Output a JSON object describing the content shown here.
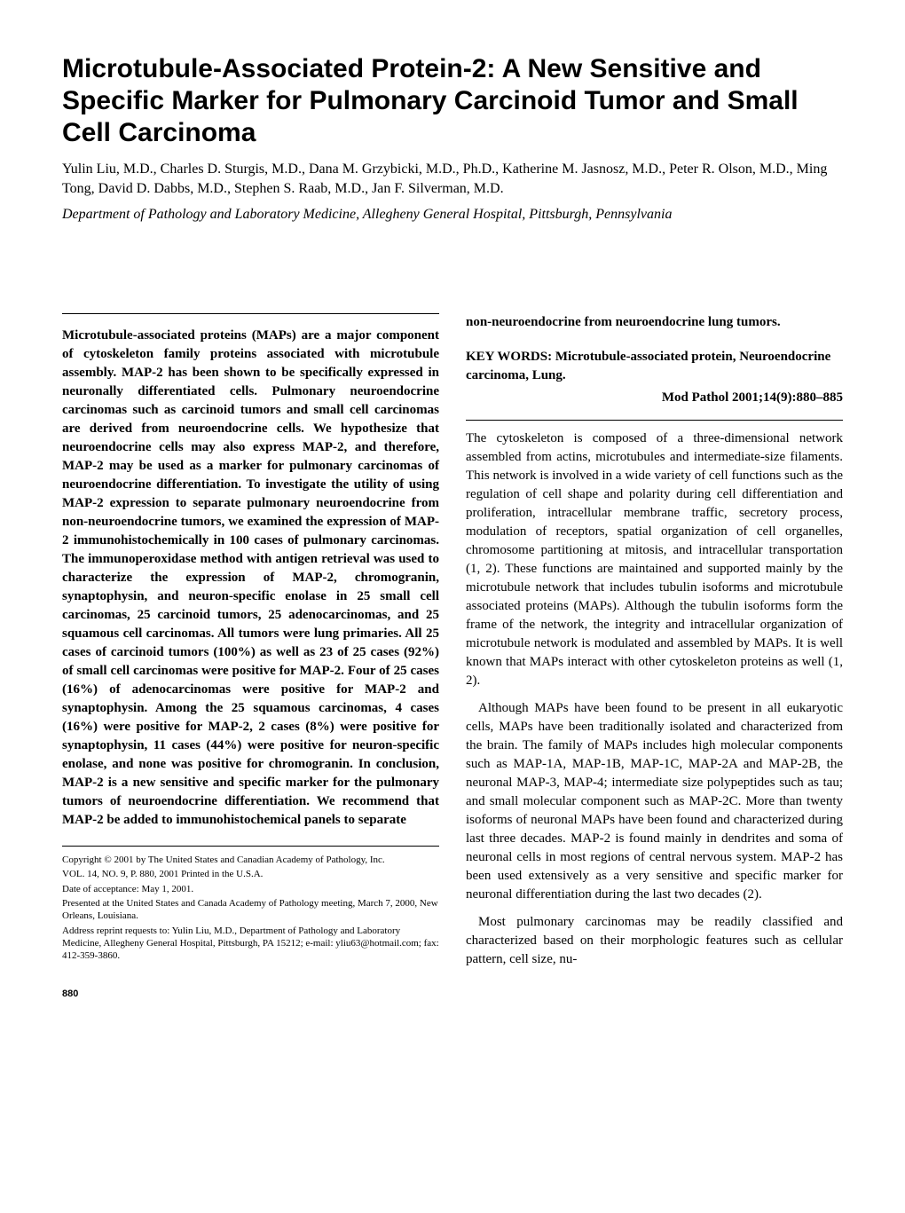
{
  "title": "Microtubule-Associated Protein-2: A New Sensitive and Specific Marker for Pulmonary Carcinoid Tumor and Small Cell Carcinoma",
  "authors": "Yulin Liu, M.D., Charles D. Sturgis, M.D., Dana M. Grzybicki, M.D., Ph.D., Katherine M. Jasnosz, M.D., Peter R. Olson, M.D., Ming Tong, David D. Dabbs, M.D., Stephen S. Raab, M.D., Jan F. Silverman, M.D.",
  "affiliation": "Department of Pathology and Laboratory Medicine, Allegheny General Hospital, Pittsburgh, Pennsylvania",
  "abstract_left": "Microtubule-associated proteins (MAPs) are a major component of cytoskeleton family proteins associated with microtubule assembly. MAP-2 has been shown to be specifically expressed in neuronally differentiated cells. Pulmonary neuroendocrine carcinomas such as carcinoid tumors and small cell carcinomas are derived from neuroendocrine cells. We hypothesize that neuroendocrine cells may also express MAP-2, and therefore, MAP-2 may be used as a marker for pulmonary carcinomas of neuroendocrine differentiation. To investigate the utility of using MAP-2 expression to separate pulmonary neuroendocrine from non-neuroendocrine tumors, we examined the expression of MAP-2 immunohistochemically in 100 cases of pulmonary carcinomas. The immunoperoxidase method with antigen retrieval was used to characterize the expression of MAP-2, chromogranin, synaptophysin, and neuron-specific enolase in 25 small cell carcinomas, 25 carcinoid tumors, 25 adenocarcinomas, and 25 squamous cell carcinomas. All tumors were lung primaries. All 25 cases of carcinoid tumors (100%) as well as 23 of 25 cases (92%) of small cell carcinomas were positive for MAP-2. Four of 25 cases (16%) of adenocarcinomas were positive for MAP-2 and synaptophysin. Among the 25 squamous carcinomas, 4 cases (16%) were positive for MAP-2, 2 cases (8%) were positive for synaptophysin, 11 cases (44%) were positive for neuron-specific enolase, and none was positive for chromogranin. In conclusion, MAP-2 is a new sensitive and specific marker for the pulmonary tumors of neuroendocrine differentiation. We recommend that MAP-2 be added to immunohistochemical panels to separate",
  "abstract_right": "non-neuroendocrine from neuroendocrine lung tumors.",
  "keywords": "KEY WORDS: Microtubule-associated protein, Neuroendocrine carcinoma, Lung.",
  "citation": "Mod Pathol 2001;14(9):880–885",
  "body_p1": "The cytoskeleton is composed of a three-dimensional network assembled from actins, microtubules and intermediate-size filaments. This network is involved in a wide variety of cell functions such as the regulation of cell shape and polarity during cell differentiation and proliferation, intracellular membrane traffic, secretory process, modulation of receptors, spatial organization of cell organelles, chromosome partitioning at mitosis, and intracellular transportation (1, 2). These functions are maintained and supported mainly by the microtubule network that includes tubulin isoforms and microtubule associated proteins (MAPs). Although the tubulin isoforms form the frame of the network, the integrity and intracellular organization of microtubule network is modulated and assembled by MAPs. It is well known that MAPs interact with other cytoskeleton proteins as well (1, 2).",
  "body_p2": "Although MAPs have been found to be present in all eukaryotic cells, MAPs have been traditionally isolated and characterized from the brain. The family of MAPs includes high molecular components such as MAP-1A, MAP-1B, MAP-1C, MAP-2A and MAP-2B, the neuronal MAP-3, MAP-4; intermediate size polypeptides such as tau; and small molecular component such as MAP-2C. More than twenty isoforms of neuronal MAPs have been found and characterized during last three decades. MAP-2 is found mainly in dendrites and soma of neuronal cells in most regions of central nervous system. MAP-2 has been used extensively as a very sensitive and specific marker for neuronal differentiation during the last two decades (2).",
  "body_p3": "Most pulmonary carcinomas may be readily classified and characterized based on their morphologic features such as cellular pattern, cell size, nu-",
  "footnotes": {
    "copyright": "Copyright © 2001 by The United States and Canadian Academy of Pathology, Inc.",
    "vol": "VOL. 14, NO. 9, P. 880, 2001 Printed in the U.S.A.",
    "date": "Date of acceptance: May 1, 2001.",
    "presented": "Presented at the United States and Canada Academy of Pathology meeting, March 7, 2000, New Orleans, Louisiana.",
    "address": "Address reprint requests to: Yulin Liu, M.D., Department of Pathology and Laboratory Medicine, Allegheny General Hospital, Pittsburgh, PA 15212; e-mail: yliu63@hotmail.com; fax: 412-359-3860."
  },
  "page_number": "880"
}
